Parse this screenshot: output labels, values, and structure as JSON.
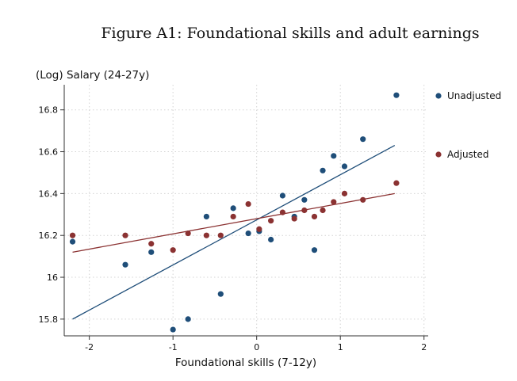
{
  "chart_data": {
    "type": "scatter",
    "title": "Figure A1: Foundational skills and adult earnings",
    "ylabel": "(Log) Salary (24-27y)",
    "xlabel": "Foundational skills (7-12y)",
    "xlim": [
      -2.3,
      2.05
    ],
    "ylim": [
      15.72,
      16.92
    ],
    "xticks": [
      -2,
      -1,
      0,
      1,
      2
    ],
    "xtick_labels": [
      "-2",
      "-1",
      "0",
      "1",
      "2"
    ],
    "yticks": [
      15.8,
      16.0,
      16.2,
      16.4,
      16.6,
      16.8
    ],
    "ytick_labels": [
      "15.8",
      "16",
      "16.2",
      "16.4",
      "16.6",
      "16.8"
    ],
    "grid": true,
    "legend_position": "right",
    "series": [
      {
        "name": "Unadjusted",
        "color": "#1f4e79",
        "points": [
          [
            -2.2,
            16.17
          ],
          [
            -1.57,
            16.06
          ],
          [
            -1.26,
            16.12
          ],
          [
            -1.0,
            15.75
          ],
          [
            -0.82,
            15.8
          ],
          [
            -0.6,
            16.29
          ],
          [
            -0.43,
            15.92
          ],
          [
            -0.28,
            16.33
          ],
          [
            -0.1,
            16.21
          ],
          [
            0.03,
            16.22
          ],
          [
            0.17,
            16.18
          ],
          [
            0.31,
            16.39
          ],
          [
            0.45,
            16.29
          ],
          [
            0.57,
            16.37
          ],
          [
            0.69,
            16.13
          ],
          [
            0.79,
            16.51
          ],
          [
            0.92,
            16.58
          ],
          [
            1.05,
            16.53
          ],
          [
            1.27,
            16.66
          ],
          [
            1.67,
            16.87
          ]
        ],
        "fit": [
          [
            -2.2,
            15.8
          ],
          [
            1.65,
            16.63
          ]
        ]
      },
      {
        "name": "Adjusted",
        "color": "#8b3232",
        "points": [
          [
            -2.2,
            16.2
          ],
          [
            -1.57,
            16.2
          ],
          [
            -1.26,
            16.16
          ],
          [
            -1.0,
            16.13
          ],
          [
            -0.82,
            16.21
          ],
          [
            -0.6,
            16.2
          ],
          [
            -0.43,
            16.2
          ],
          [
            -0.28,
            16.29
          ],
          [
            -0.1,
            16.35
          ],
          [
            0.03,
            16.23
          ],
          [
            0.17,
            16.27
          ],
          [
            0.31,
            16.31
          ],
          [
            0.45,
            16.28
          ],
          [
            0.57,
            16.32
          ],
          [
            0.69,
            16.29
          ],
          [
            0.79,
            16.32
          ],
          [
            0.92,
            16.36
          ],
          [
            1.05,
            16.4
          ],
          [
            1.27,
            16.37
          ],
          [
            1.67,
            16.45
          ]
        ],
        "fit": [
          [
            -2.2,
            16.12
          ],
          [
            1.65,
            16.4
          ]
        ]
      }
    ]
  }
}
